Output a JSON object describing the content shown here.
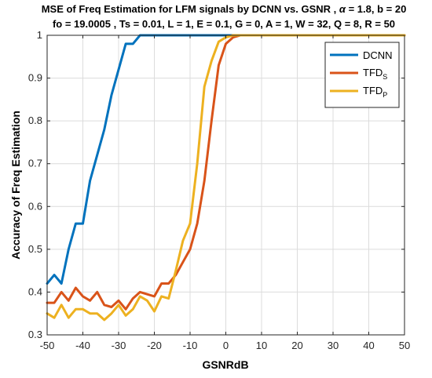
{
  "chart_data": {
    "type": "line",
    "title_line1_prefix": "MSE of Freq Estimation for LFM signals by DCNN vs. GSNR ,  ",
    "title_line1_alpha": "α",
    "title_line1_suffix": " = 1.8, b = 20",
    "title_line2": "fo = 19.0005  , Ts = 0.01,   L = 1,   E = 0.1, G = 0,   A = 1, W = 32, Q = 8, R = 50",
    "xlabel": "GSNRdB",
    "ylabel": "Accuracy of Freq Estimation",
    "xlim": [
      -50,
      50
    ],
    "ylim": [
      0.3,
      1.0
    ],
    "xticks": [
      -50,
      -40,
      -30,
      -20,
      -10,
      0,
      10,
      20,
      30,
      40,
      50
    ],
    "yticks": [
      0.3,
      0.4,
      0.5,
      0.6,
      0.7,
      0.8,
      0.9,
      1
    ],
    "grid": true,
    "legend_position": "top-right",
    "series": [
      {
        "name": "DCNN",
        "name_sub": "",
        "color": "#0072BD",
        "x": [
          -50,
          -48,
          -46,
          -44,
          -42,
          -40,
          -38,
          -36,
          -34,
          -32,
          -30,
          -28,
          -26,
          -24,
          -22,
          -20,
          -18,
          -16,
          -14,
          -12,
          -10,
          -8,
          -6,
          -4,
          -2,
          0,
          2,
          4,
          6,
          8,
          10,
          15,
          20,
          25,
          30,
          35,
          40,
          45,
          50
        ],
        "y": [
          0.42,
          0.44,
          0.42,
          0.5,
          0.56,
          0.56,
          0.66,
          0.72,
          0.78,
          0.86,
          0.92,
          0.98,
          0.98,
          1,
          1,
          1,
          1,
          1,
          1,
          1,
          1,
          1,
          1,
          1,
          1,
          1,
          1,
          1,
          1,
          1,
          1,
          1,
          1,
          1,
          1,
          1,
          1,
          1,
          1
        ]
      },
      {
        "name": "TFD",
        "name_sub": "S",
        "color": "#D95319",
        "x": [
          -50,
          -48,
          -46,
          -44,
          -42,
          -40,
          -38,
          -36,
          -34,
          -32,
          -30,
          -28,
          -26,
          -24,
          -22,
          -20,
          -18,
          -16,
          -14,
          -12,
          -10,
          -8,
          -6,
          -4,
          -2,
          0,
          2,
          4,
          6,
          8,
          10,
          15,
          20,
          25,
          30,
          35,
          40,
          45,
          50
        ],
        "y": [
          0.375,
          0.375,
          0.4,
          0.38,
          0.41,
          0.39,
          0.38,
          0.4,
          0.37,
          0.365,
          0.38,
          0.36,
          0.385,
          0.4,
          0.395,
          0.39,
          0.42,
          0.42,
          0.44,
          0.47,
          0.5,
          0.56,
          0.66,
          0.8,
          0.93,
          0.98,
          0.995,
          1,
          1,
          1,
          1,
          1,
          1,
          1,
          1,
          1,
          1,
          1,
          1
        ]
      },
      {
        "name": "TFD",
        "name_sub": "P",
        "color": "#EDB120",
        "x": [
          -50,
          -48,
          -46,
          -44,
          -42,
          -40,
          -38,
          -36,
          -34,
          -32,
          -30,
          -28,
          -26,
          -24,
          -22,
          -20,
          -18,
          -16,
          -14,
          -12,
          -10,
          -8,
          -6,
          -4,
          -2,
          0,
          2,
          4,
          6,
          8,
          10,
          15,
          20,
          25,
          30,
          35,
          40,
          45,
          50
        ],
        "y": [
          0.35,
          0.34,
          0.37,
          0.34,
          0.36,
          0.36,
          0.35,
          0.35,
          0.335,
          0.35,
          0.37,
          0.345,
          0.36,
          0.39,
          0.38,
          0.355,
          0.39,
          0.385,
          0.45,
          0.52,
          0.56,
          0.7,
          0.88,
          0.94,
          0.985,
          0.995,
          1,
          1,
          1,
          1,
          1,
          1,
          1,
          1,
          1,
          1,
          1,
          1,
          1
        ]
      }
    ]
  }
}
